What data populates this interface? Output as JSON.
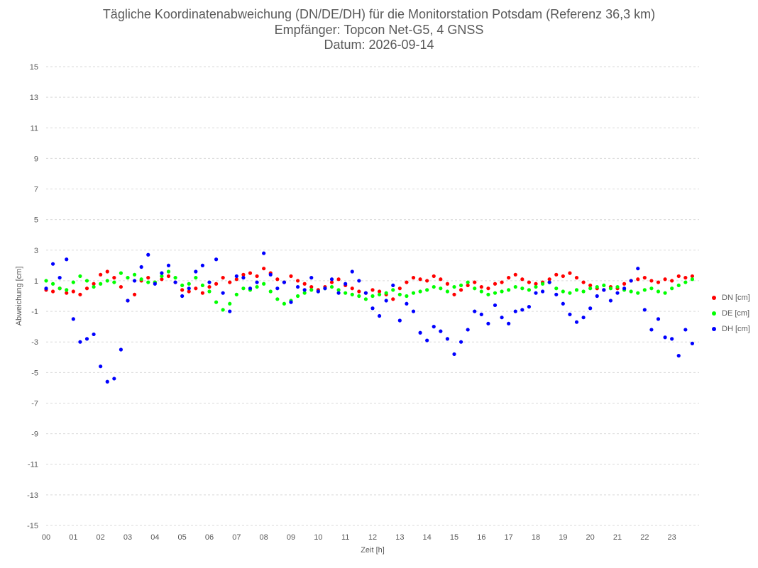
{
  "title": {
    "line1": "Tägliche Koordinatenabweichung (DN/DE/DH) für die Monitorstation Potsdam (Referenz 36,3 km)",
    "line2": "Empfänger: Topcon Net-G5, 4 GNSS",
    "line3": "Datum: 2026-09-14"
  },
  "chart_data": {
    "type": "scatter",
    "xlabel": "Zeit [h]",
    "ylabel": "Abweichung [cm]",
    "xlim": [
      0,
      24
    ],
    "ylim": [
      -15,
      15
    ],
    "x_ticks": [
      "00",
      "01",
      "02",
      "03",
      "04",
      "05",
      "06",
      "07",
      "08",
      "09",
      "10",
      "11",
      "12",
      "13",
      "14",
      "15",
      "16",
      "17",
      "18",
      "19",
      "20",
      "21",
      "22",
      "23"
    ],
    "y_ticks": [
      15,
      13,
      11,
      9,
      7,
      5,
      3,
      1,
      -1,
      -3,
      -5,
      -7,
      -9,
      -11,
      -13,
      -15
    ],
    "grid": "horizontal dashed",
    "legend_position": "right",
    "series": [
      {
        "name": "DN [cm]",
        "color": "#ff0000",
        "x": [
          0.0,
          0.25,
          0.5,
          0.75,
          1.0,
          1.25,
          1.5,
          1.75,
          2.0,
          2.25,
          2.5,
          2.75,
          3.0,
          3.25,
          3.5,
          3.75,
          4.0,
          4.25,
          4.5,
          4.75,
          5.0,
          5.25,
          5.5,
          5.75,
          6.0,
          6.25,
          6.5,
          6.75,
          7.0,
          7.25,
          7.5,
          7.75,
          8.0,
          8.25,
          8.5,
          8.75,
          9.0,
          9.25,
          9.5,
          9.75,
          10.0,
          10.25,
          10.5,
          10.75,
          11.0,
          11.25,
          11.5,
          11.75,
          12.0,
          12.25,
          12.5,
          12.75,
          13.0,
          13.25,
          13.5,
          13.75,
          14.0,
          14.25,
          14.5,
          14.75,
          15.0,
          15.25,
          15.5,
          15.75,
          16.0,
          16.25,
          16.5,
          16.75,
          17.0,
          17.25,
          17.5,
          17.75,
          18.0,
          18.25,
          18.5,
          18.75,
          19.0,
          19.25,
          19.5,
          19.75,
          20.0,
          20.25,
          20.5,
          20.75,
          21.0,
          21.25,
          21.5,
          21.75,
          22.0,
          22.25,
          22.5,
          22.75,
          23.0,
          23.25,
          23.5,
          23.75
        ],
        "y": [
          0.4,
          0.3,
          0.5,
          0.2,
          0.3,
          0.1,
          0.5,
          0.8,
          1.4,
          1.6,
          1.2,
          0.6,
          -0.3,
          0.1,
          1.0,
          1.2,
          0.9,
          1.1,
          1.3,
          0.9,
          0.4,
          0.3,
          0.5,
          0.2,
          0.6,
          0.8,
          1.2,
          0.9,
          1.1,
          1.4,
          1.5,
          1.3,
          1.8,
          1.5,
          1.1,
          0.9,
          1.3,
          1.0,
          0.8,
          0.6,
          0.4,
          0.6,
          0.9,
          1.1,
          0.7,
          0.5,
          0.3,
          0.2,
          0.4,
          0.3,
          0.1,
          -0.2,
          0.5,
          0.9,
          1.2,
          1.1,
          1.0,
          1.3,
          1.1,
          0.8,
          0.1,
          0.4,
          0.7,
          0.9,
          0.6,
          0.5,
          0.8,
          0.9,
          1.2,
          1.4,
          1.1,
          0.9,
          0.8,
          0.9,
          1.1,
          1.4,
          1.3,
          1.5,
          1.2,
          0.9,
          0.7,
          0.5,
          0.4,
          0.6,
          0.5,
          0.8,
          1.0,
          1.1,
          1.2,
          1.0,
          0.9,
          1.1,
          1.0,
          1.3,
          1.2,
          1.3
        ]
      },
      {
        "name": "DE [cm]",
        "color": "#00ff00",
        "x": [
          0.0,
          0.25,
          0.5,
          0.75,
          1.0,
          1.25,
          1.5,
          1.75,
          2.0,
          2.25,
          2.5,
          2.75,
          3.0,
          3.25,
          3.5,
          3.75,
          4.0,
          4.25,
          4.5,
          4.75,
          5.0,
          5.25,
          5.5,
          5.75,
          6.0,
          6.25,
          6.5,
          6.75,
          7.0,
          7.25,
          7.5,
          7.75,
          8.0,
          8.25,
          8.5,
          8.75,
          9.0,
          9.25,
          9.5,
          9.75,
          10.0,
          10.25,
          10.5,
          10.75,
          11.0,
          11.25,
          11.5,
          11.75,
          12.0,
          12.25,
          12.5,
          12.75,
          13.0,
          13.25,
          13.5,
          13.75,
          14.0,
          14.25,
          14.5,
          14.75,
          15.0,
          15.25,
          15.5,
          15.75,
          16.0,
          16.25,
          16.5,
          16.75,
          17.0,
          17.25,
          17.5,
          17.75,
          18.0,
          18.25,
          18.5,
          18.75,
          19.0,
          19.25,
          19.5,
          19.75,
          20.0,
          20.25,
          20.5,
          20.75,
          21.0,
          21.25,
          21.5,
          21.75,
          22.0,
          22.25,
          22.5,
          22.75,
          23.0,
          23.25,
          23.5,
          23.75
        ],
        "y": [
          1.0,
          0.8,
          0.5,
          0.4,
          0.9,
          1.3,
          1.0,
          0.6,
          0.8,
          1.0,
          0.9,
          1.5,
          1.2,
          1.4,
          1.1,
          0.9,
          0.9,
          1.3,
          1.6,
          1.2,
          0.7,
          0.8,
          1.2,
          0.7,
          0.3,
          -0.4,
          -0.9,
          -0.5,
          0.1,
          0.5,
          0.4,
          0.6,
          0.8,
          0.3,
          -0.2,
          -0.5,
          -0.3,
          0.0,
          0.2,
          0.4,
          0.3,
          0.5,
          0.6,
          0.4,
          0.2,
          0.1,
          0.0,
          -0.2,
          0.0,
          0.1,
          0.2,
          0.4,
          0.1,
          0.0,
          0.2,
          0.3,
          0.4,
          0.6,
          0.5,
          0.3,
          0.6,
          0.7,
          0.9,
          0.5,
          0.3,
          0.1,
          0.2,
          0.3,
          0.4,
          0.6,
          0.5,
          0.4,
          0.6,
          0.8,
          0.9,
          0.5,
          0.3,
          0.2,
          0.4,
          0.3,
          0.5,
          0.6,
          0.7,
          0.5,
          0.6,
          0.4,
          0.3,
          0.2,
          0.4,
          0.5,
          0.3,
          0.2,
          0.5,
          0.7,
          0.9,
          1.1
        ]
      },
      {
        "name": "DH [cm]",
        "color": "#0000ff",
        "x": [
          0.0,
          0.25,
          0.5,
          0.75,
          1.0,
          1.25,
          1.5,
          1.75,
          2.0,
          2.25,
          2.5,
          2.75,
          3.0,
          3.25,
          3.5,
          3.75,
          4.0,
          4.25,
          4.5,
          4.75,
          5.0,
          5.25,
          5.5,
          5.75,
          6.0,
          6.25,
          6.5,
          6.75,
          7.0,
          7.25,
          7.5,
          7.75,
          8.0,
          8.25,
          8.5,
          8.75,
          9.0,
          9.25,
          9.5,
          9.75,
          10.0,
          10.25,
          10.5,
          10.75,
          11.0,
          11.25,
          11.5,
          11.75,
          12.0,
          12.25,
          12.5,
          12.75,
          13.0,
          13.25,
          13.5,
          13.75,
          14.0,
          14.25,
          14.5,
          14.75,
          15.0,
          15.25,
          15.5,
          15.75,
          16.0,
          16.25,
          16.5,
          16.75,
          17.0,
          17.25,
          17.5,
          17.75,
          18.0,
          18.25,
          18.5,
          18.75,
          19.0,
          19.25,
          19.5,
          19.75,
          20.0,
          20.25,
          20.5,
          20.75,
          21.0,
          21.25,
          21.5,
          21.75,
          22.0,
          22.25,
          22.5,
          22.75,
          23.0,
          23.25,
          23.5,
          23.75
        ],
        "y": [
          0.5,
          2.1,
          1.2,
          2.4,
          -1.5,
          -3.0,
          -2.8,
          -2.5,
          -4.6,
          -5.6,
          -5.4,
          -3.5,
          -0.3,
          1.0,
          1.9,
          2.7,
          0.8,
          1.5,
          2.0,
          0.9,
          0.0,
          0.5,
          1.6,
          2.0,
          0.9,
          2.4,
          0.2,
          -1.0,
          1.3,
          1.2,
          0.5,
          0.9,
          2.8,
          1.4,
          0.5,
          0.9,
          -0.4,
          0.6,
          0.4,
          1.2,
          0.3,
          0.5,
          1.1,
          0.2,
          0.8,
          1.6,
          1.0,
          0.2,
          -0.8,
          -1.3,
          -0.3,
          0.7,
          -1.6,
          -0.5,
          -1.0,
          -2.4,
          -2.9,
          -2.0,
          -2.3,
          -2.8,
          -3.8,
          -3.0,
          -2.2,
          -1.0,
          -1.2,
          -1.8,
          -0.6,
          -1.4,
          -1.8,
          -1.0,
          -0.9,
          -0.7,
          0.2,
          0.3,
          0.9,
          0.1,
          -0.5,
          -1.2,
          -1.7,
          -1.4,
          -0.8,
          0.0,
          0.4,
          -0.3,
          0.2,
          0.5,
          1.0,
          1.8,
          -0.9,
          -2.2,
          -1.5,
          -2.7,
          -2.8,
          -3.9,
          -2.2,
          -3.1
        ]
      }
    ]
  },
  "legend": {
    "items": [
      {
        "label": "DN [cm]",
        "color": "#ff0000"
      },
      {
        "label": "DE [cm]",
        "color": "#00ff00"
      },
      {
        "label": "DH [cm]",
        "color": "#0000ff"
      }
    ]
  }
}
